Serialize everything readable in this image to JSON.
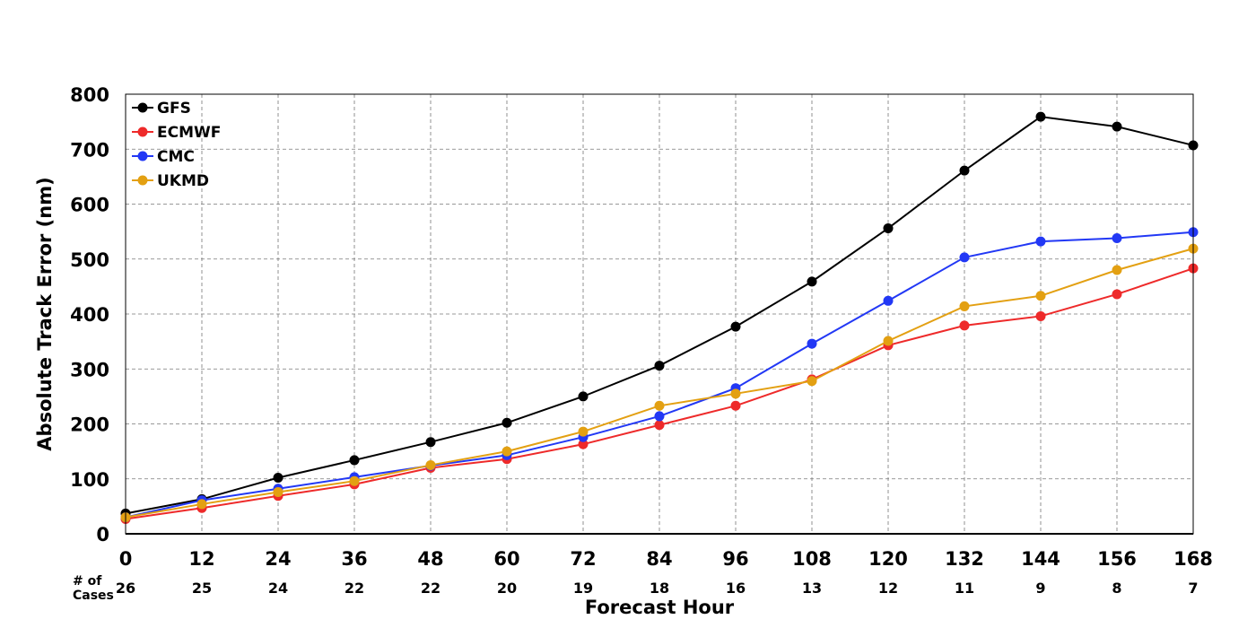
{
  "chart_data": {
    "type": "line",
    "title": "",
    "xlabel": "Forecast Hour",
    "ylabel": "Absolute Track Error (nm)",
    "x": [
      0,
      12,
      24,
      36,
      48,
      60,
      72,
      84,
      96,
      108,
      120,
      132,
      144,
      156,
      168
    ],
    "xlim": [
      0,
      168
    ],
    "ylim": [
      0,
      800
    ],
    "yticks": [
      0,
      100,
      200,
      300,
      400,
      500,
      600,
      700,
      800
    ],
    "grid": true,
    "legend_position": "top-left",
    "cases_label": "# of\nCases",
    "cases": [
      26,
      25,
      24,
      22,
      22,
      20,
      19,
      18,
      16,
      13,
      12,
      11,
      9,
      8,
      7
    ],
    "series": [
      {
        "name": "GFS",
        "color": "#000000",
        "values": [
          37,
          63,
          102,
          134,
          167,
          202,
          250,
          306,
          377,
          459,
          556,
          661,
          759,
          741,
          707
        ]
      },
      {
        "name": "ECMWF",
        "color": "#ee2a2a",
        "values": [
          27,
          47,
          69,
          90,
          120,
          136,
          163,
          198,
          233,
          281,
          343,
          379,
          396,
          436,
          483
        ]
      },
      {
        "name": "CMC",
        "color": "#2238f5",
        "values": [
          30,
          61,
          82,
          103,
          124,
          143,
          176,
          214,
          265,
          346,
          424,
          503,
          532,
          538,
          549
        ]
      },
      {
        "name": "UKMD",
        "color": "#e3a012",
        "values": [
          30,
          54,
          76,
          96,
          125,
          150,
          186,
          233,
          255,
          278,
          351,
          414,
          433,
          480,
          519
        ]
      }
    ]
  }
}
